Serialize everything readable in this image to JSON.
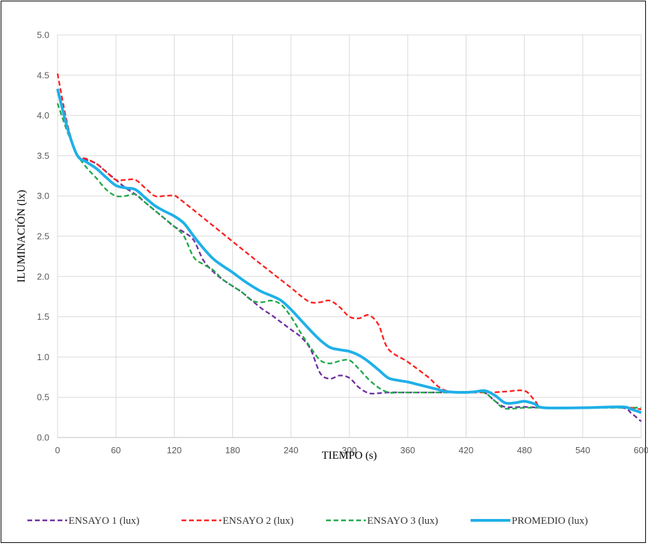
{
  "chart_data": {
    "type": "line",
    "xlabel": "TIEMPO (s)",
    "ylabel": "ILUMINACIÓN (lx)",
    "xlim": [
      0,
      600
    ],
    "ylim": [
      0,
      5
    ],
    "xticks": [
      "0",
      "60",
      "120",
      "180",
      "240",
      "300",
      "360",
      "420",
      "480",
      "540",
      "600"
    ],
    "yticks": [
      "0.0",
      "0.5",
      "1.0",
      "1.5",
      "2.0",
      "2.5",
      "3.0",
      "3.5",
      "4.0",
      "4.5",
      "5.0"
    ],
    "grid": true,
    "legend_position": "bottom",
    "series": [
      {
        "name": "ENSAYO 1 (lux)",
        "color": "#7030a0",
        "style": "dashed",
        "x": [
          0,
          10,
          20,
          30,
          40,
          50,
          60,
          70,
          80,
          90,
          100,
          110,
          120,
          130,
          140,
          150,
          160,
          170,
          180,
          190,
          200,
          210,
          220,
          230,
          240,
          250,
          260,
          270,
          280,
          290,
          300,
          310,
          320,
          330,
          340,
          350,
          360,
          400,
          430,
          440,
          450,
          460,
          480,
          500,
          540,
          580,
          590,
          600
        ],
        "y": [
          4.3,
          3.85,
          3.5,
          3.45,
          3.4,
          3.3,
          3.2,
          3.1,
          3.02,
          2.92,
          2.82,
          2.72,
          2.62,
          2.55,
          2.45,
          2.2,
          2.06,
          1.96,
          1.88,
          1.8,
          1.7,
          1.6,
          1.52,
          1.43,
          1.34,
          1.25,
          1.1,
          0.8,
          0.73,
          0.77,
          0.74,
          0.62,
          0.55,
          0.55,
          0.56,
          0.56,
          0.56,
          0.56,
          0.57,
          0.55,
          0.45,
          0.38,
          0.38,
          0.37,
          0.37,
          0.37,
          0.3,
          0.2
        ]
      },
      {
        "name": "ENSAYO 2 (lux)",
        "color": "#ff1f1f",
        "style": "dashed",
        "x": [
          0,
          10,
          20,
          30,
          40,
          50,
          60,
          70,
          80,
          90,
          100,
          110,
          120,
          130,
          200,
          240,
          250,
          260,
          270,
          280,
          290,
          300,
          310,
          320,
          330,
          340,
          360,
          380,
          400,
          440,
          460,
          480,
          490,
          500,
          540,
          580,
          600
        ],
        "y": [
          4.52,
          3.9,
          3.52,
          3.46,
          3.4,
          3.3,
          3.2,
          3.2,
          3.2,
          3.1,
          3.0,
          3.0,
          3.0,
          2.92,
          2.24,
          1.86,
          1.76,
          1.68,
          1.68,
          1.7,
          1.62,
          1.5,
          1.48,
          1.52,
          1.4,
          1.1,
          0.94,
          0.76,
          0.58,
          0.56,
          0.57,
          0.58,
          0.47,
          0.37,
          0.37,
          0.38,
          0.35
        ]
      },
      {
        "name": "ENSAYO 3 (lux)",
        "color": "#21a84a",
        "style": "dashed",
        "x": [
          0,
          10,
          20,
          30,
          40,
          50,
          60,
          70,
          80,
          90,
          100,
          110,
          120,
          130,
          140,
          150,
          160,
          170,
          180,
          190,
          200,
          210,
          220,
          230,
          240,
          250,
          260,
          270,
          280,
          290,
          300,
          310,
          320,
          330,
          340,
          350,
          360,
          400,
          430,
          440,
          450,
          460,
          480,
          500,
          540,
          580,
          600
        ],
        "y": [
          4.15,
          3.8,
          3.52,
          3.35,
          3.22,
          3.08,
          3.0,
          3.0,
          3.02,
          2.92,
          2.82,
          2.72,
          2.62,
          2.5,
          2.24,
          2.15,
          2.08,
          1.96,
          1.88,
          1.8,
          1.7,
          1.68,
          1.7,
          1.65,
          1.5,
          1.3,
          1.12,
          0.96,
          0.92,
          0.95,
          0.96,
          0.85,
          0.72,
          0.62,
          0.56,
          0.56,
          0.56,
          0.56,
          0.57,
          0.55,
          0.45,
          0.36,
          0.37,
          0.37,
          0.37,
          0.37,
          0.37
        ]
      },
      {
        "name": "PROMEDIO (lux)",
        "color": "#1fb0e8",
        "style": "solid",
        "x": [
          0,
          10,
          20,
          30,
          40,
          50,
          60,
          70,
          80,
          90,
          100,
          110,
          120,
          130,
          140,
          150,
          160,
          170,
          180,
          190,
          200,
          210,
          220,
          230,
          240,
          250,
          260,
          270,
          280,
          290,
          300,
          310,
          320,
          330,
          340,
          350,
          360,
          370,
          380,
          390,
          400,
          420,
          430,
          440,
          450,
          460,
          470,
          480,
          490,
          500,
          540,
          580,
          590,
          600
        ],
        "y": [
          4.33,
          3.85,
          3.51,
          3.42,
          3.34,
          3.23,
          3.13,
          3.1,
          3.08,
          2.98,
          2.88,
          2.81,
          2.75,
          2.66,
          2.5,
          2.35,
          2.22,
          2.13,
          2.05,
          1.96,
          1.88,
          1.81,
          1.76,
          1.7,
          1.59,
          1.46,
          1.33,
          1.21,
          1.12,
          1.09,
          1.07,
          1.02,
          0.94,
          0.84,
          0.74,
          0.71,
          0.69,
          0.66,
          0.63,
          0.6,
          0.57,
          0.56,
          0.57,
          0.58,
          0.52,
          0.43,
          0.43,
          0.45,
          0.42,
          0.37,
          0.37,
          0.38,
          0.35,
          0.31
        ]
      }
    ]
  }
}
